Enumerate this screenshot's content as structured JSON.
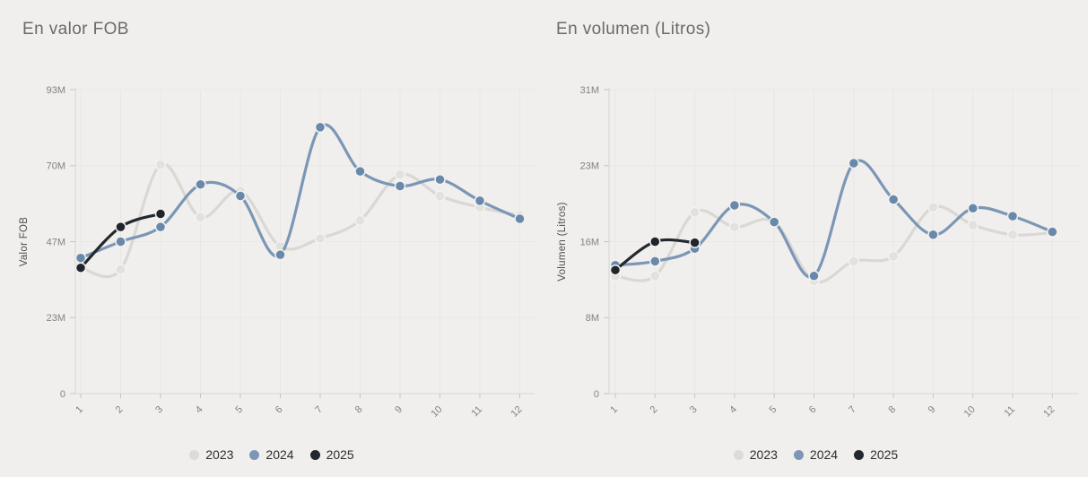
{
  "page": {
    "background": "#f0efed"
  },
  "legend": {
    "position": "bottom",
    "items": [
      {
        "label": "2023",
        "color": "#dcdbd8"
      },
      {
        "label": "2024",
        "color": "#7b97b5"
      },
      {
        "label": "2025",
        "color": "#23282f"
      }
    ]
  },
  "chart_data": [
    {
      "type": "line",
      "title": "En valor FOB",
      "ylabel": "Valor FOB",
      "xlabel": "",
      "x": [
        1,
        2,
        3,
        4,
        5,
        6,
        7,
        8,
        9,
        10,
        11,
        12
      ],
      "values_unit": "millions",
      "ylim": [
        0,
        93
      ],
      "ytick_values": [
        0,
        23.25,
        46.5,
        69.75,
        93
      ],
      "ytick_labels": [
        "0",
        "23M",
        "47M",
        "70M",
        "93M"
      ],
      "grid": true,
      "legend_position": "bottom",
      "series": [
        {
          "name": "2023",
          "color": "#d9d8d5",
          "marker_color": "#e2e1de",
          "values": [
            38.5,
            38,
            70,
            54,
            62,
            45,
            47.5,
            53,
            67,
            60.5,
            57,
            54.5
          ]
        },
        {
          "name": "2024",
          "color": "#7b97b5",
          "marker_color": "#6989aa",
          "values": [
            41.5,
            46.5,
            51,
            64,
            60.5,
            42.5,
            81.5,
            68,
            63.5,
            65.5,
            59,
            53.5
          ]
        },
        {
          "name": "2025",
          "color": "#23282f",
          "marker_color": "#20252c",
          "values": [
            38.5,
            51,
            55
          ]
        }
      ]
    },
    {
      "type": "line",
      "title": "En volumen (Litros)",
      "ylabel": "Volumen (Litros)",
      "xlabel": "",
      "x": [
        1,
        2,
        3,
        4,
        5,
        6,
        7,
        8,
        9,
        10,
        11,
        12
      ],
      "values_unit": "millions",
      "ylim": [
        0,
        31
      ],
      "ytick_values": [
        0,
        7.75,
        15.5,
        23.25,
        31
      ],
      "ytick_labels": [
        "0",
        "8M",
        "16M",
        "23M",
        "31M"
      ],
      "grid": true,
      "legend_position": "bottom",
      "series": [
        {
          "name": "2023",
          "color": "#d9d8d5",
          "marker_color": "#e2e1de",
          "values": [
            12,
            12,
            18.5,
            17,
            17.5,
            11.5,
            13.5,
            14,
            19,
            17.2,
            16.2,
            16.4
          ]
        },
        {
          "name": "2024",
          "color": "#7b97b5",
          "marker_color": "#6989aa",
          "values": [
            13.1,
            13.5,
            14.8,
            19.2,
            17.5,
            12,
            23.5,
            19.8,
            16.2,
            18.9,
            18.1,
            16.5
          ]
        },
        {
          "name": "2025",
          "color": "#23282f",
          "marker_color": "#20252c",
          "values": [
            12.6,
            15.5,
            15.4
          ]
        }
      ]
    }
  ]
}
